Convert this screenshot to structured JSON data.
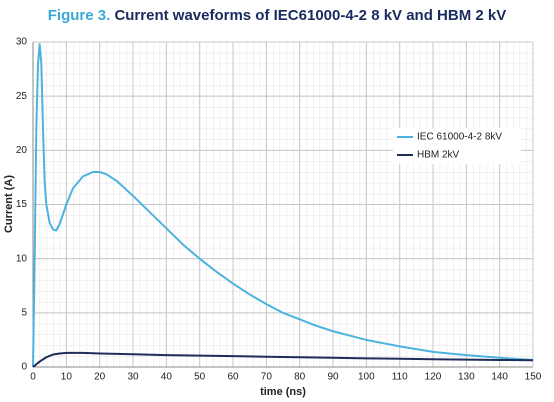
{
  "chart_data": {
    "type": "line",
    "figure_label": "Figure 3.",
    "title": "Current waveforms of IEC61000-4-2 8 kV and HBM 2 kV",
    "x_label": "time (ns)",
    "y_label": "Current (A)",
    "xlim": [
      0,
      150
    ],
    "ylim": [
      0,
      30
    ],
    "xticks": [
      0,
      10,
      20,
      30,
      40,
      50,
      60,
      70,
      80,
      90,
      100,
      110,
      120,
      130,
      140,
      150
    ],
    "yticks": [
      0,
      5,
      10,
      15,
      20,
      25,
      30
    ],
    "grid": true,
    "legend": "right",
    "series": [
      {
        "name": "IEC 61000-4-2 8kV",
        "color": "#4cb3e0",
        "x": [
          0,
          0.5,
          1,
          1.5,
          2,
          2.5,
          3,
          3.5,
          4,
          5,
          6,
          7,
          8,
          10,
          12,
          15,
          18,
          20,
          22,
          25,
          30,
          35,
          40,
          45,
          50,
          55,
          60,
          65,
          70,
          75,
          80,
          85,
          90,
          95,
          100,
          110,
          120,
          130,
          140,
          150
        ],
        "values": [
          0,
          10,
          22,
          28,
          29.8,
          28,
          22,
          17,
          15,
          13.3,
          12.7,
          12.6,
          13.2,
          15,
          16.5,
          17.6,
          18,
          18,
          17.8,
          17.2,
          15.8,
          14.3,
          12.8,
          11.3,
          10,
          8.8,
          7.7,
          6.7,
          5.8,
          5,
          4.4,
          3.8,
          3.3,
          2.9,
          2.5,
          1.9,
          1.4,
          1.1,
          0.85,
          0.65
        ]
      },
      {
        "name": "HBM 2kV",
        "color": "#1f2d5a",
        "x": [
          0,
          2,
          4,
          6,
          8,
          10,
          15,
          20,
          30,
          40,
          50,
          60,
          70,
          80,
          90,
          100,
          110,
          120,
          130,
          140,
          150
        ],
        "values": [
          0,
          0.5,
          0.9,
          1.15,
          1.25,
          1.3,
          1.3,
          1.25,
          1.18,
          1.1,
          1.05,
          1.0,
          0.95,
          0.9,
          0.85,
          0.8,
          0.76,
          0.72,
          0.68,
          0.65,
          0.62
        ]
      }
    ]
  }
}
